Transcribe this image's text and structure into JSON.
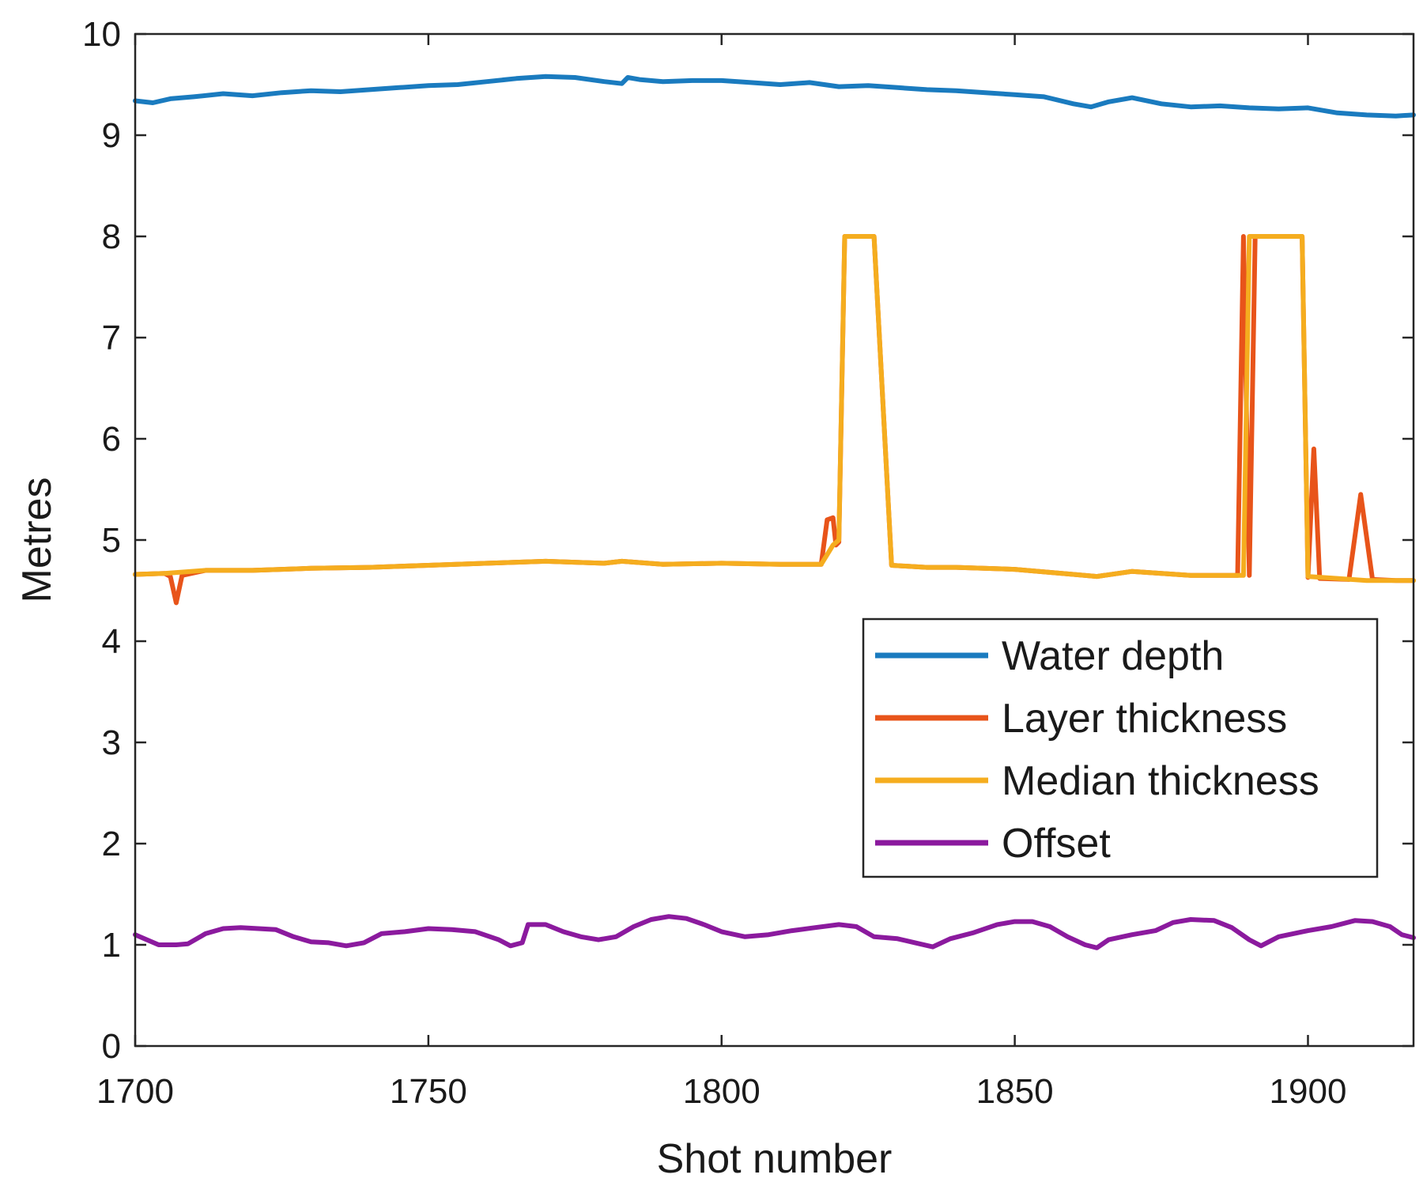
{
  "chart_data": {
    "type": "line",
    "title": "",
    "xlabel": "Shot number",
    "ylabel": "Metres",
    "xlim": [
      1700,
      1918
    ],
    "ylim": [
      0,
      10
    ],
    "xticks": [
      1700,
      1750,
      1800,
      1850,
      1900
    ],
    "yticks": [
      0,
      1,
      2,
      3,
      4,
      5,
      6,
      7,
      8,
      9,
      10
    ],
    "grid": false,
    "legend_position": "center-right",
    "series": [
      {
        "name": "Water depth",
        "color": "#1a7bbf",
        "points": [
          [
            1700,
            9.34
          ],
          [
            1703,
            9.32
          ],
          [
            1706,
            9.36
          ],
          [
            1710,
            9.38
          ],
          [
            1715,
            9.41
          ],
          [
            1720,
            9.39
          ],
          [
            1725,
            9.42
          ],
          [
            1730,
            9.44
          ],
          [
            1735,
            9.43
          ],
          [
            1740,
            9.45
          ],
          [
            1745,
            9.47
          ],
          [
            1750,
            9.49
          ],
          [
            1755,
            9.5
          ],
          [
            1760,
            9.53
          ],
          [
            1765,
            9.56
          ],
          [
            1770,
            9.58
          ],
          [
            1775,
            9.57
          ],
          [
            1780,
            9.53
          ],
          [
            1783,
            9.51
          ],
          [
            1784,
            9.57
          ],
          [
            1786,
            9.55
          ],
          [
            1790,
            9.53
          ],
          [
            1795,
            9.54
          ],
          [
            1800,
            9.54
          ],
          [
            1805,
            9.52
          ],
          [
            1810,
            9.5
          ],
          [
            1815,
            9.52
          ],
          [
            1820,
            9.48
          ],
          [
            1825,
            9.49
          ],
          [
            1830,
            9.47
          ],
          [
            1835,
            9.45
          ],
          [
            1840,
            9.44
          ],
          [
            1845,
            9.42
          ],
          [
            1850,
            9.4
          ],
          [
            1855,
            9.38
          ],
          [
            1860,
            9.31
          ],
          [
            1863,
            9.28
          ],
          [
            1866,
            9.33
          ],
          [
            1870,
            9.37
          ],
          [
            1875,
            9.31
          ],
          [
            1880,
            9.28
          ],
          [
            1885,
            9.29
          ],
          [
            1890,
            9.27
          ],
          [
            1895,
            9.26
          ],
          [
            1900,
            9.27
          ],
          [
            1905,
            9.22
          ],
          [
            1910,
            9.2
          ],
          [
            1915,
            9.19
          ],
          [
            1918,
            9.2
          ]
        ]
      },
      {
        "name": "Layer thickness",
        "color": "#e8541a",
        "points": [
          [
            1700,
            4.66
          ],
          [
            1705,
            4.67
          ],
          [
            1706,
            4.64
          ],
          [
            1707,
            4.38
          ],
          [
            1708,
            4.65
          ],
          [
            1712,
            4.7
          ],
          [
            1720,
            4.7
          ],
          [
            1730,
            4.72
          ],
          [
            1740,
            4.73
          ],
          [
            1750,
            4.75
          ],
          [
            1760,
            4.77
          ],
          [
            1770,
            4.79
          ],
          [
            1780,
            4.77
          ],
          [
            1783,
            4.79
          ],
          [
            1790,
            4.76
          ],
          [
            1800,
            4.77
          ],
          [
            1810,
            4.76
          ],
          [
            1817,
            4.76
          ],
          [
            1818,
            5.2
          ],
          [
            1819,
            5.22
          ],
          [
            1819.5,
            4.95
          ],
          [
            1820,
            4.98
          ],
          [
            1821,
            8.0
          ],
          [
            1826,
            8.0
          ],
          [
            1829,
            4.75
          ],
          [
            1835,
            4.73
          ],
          [
            1840,
            4.73
          ],
          [
            1850,
            4.71
          ],
          [
            1860,
            4.66
          ],
          [
            1864,
            4.64
          ],
          [
            1870,
            4.69
          ],
          [
            1875,
            4.67
          ],
          [
            1880,
            4.65
          ],
          [
            1888,
            4.65
          ],
          [
            1889,
            8.0
          ],
          [
            1890,
            4.65
          ],
          [
            1891,
            8.0
          ],
          [
            1899,
            8.0
          ],
          [
            1900,
            4.63
          ],
          [
            1901,
            5.9
          ],
          [
            1902,
            4.62
          ],
          [
            1907,
            4.61
          ],
          [
            1909,
            5.45
          ],
          [
            1911,
            4.61
          ],
          [
            1915,
            4.6
          ],
          [
            1918,
            4.6
          ]
        ]
      },
      {
        "name": "Median thickness",
        "color": "#f5ad1f",
        "points": [
          [
            1700,
            4.66
          ],
          [
            1705,
            4.67
          ],
          [
            1712,
            4.7
          ],
          [
            1720,
            4.7
          ],
          [
            1730,
            4.72
          ],
          [
            1740,
            4.73
          ],
          [
            1750,
            4.75
          ],
          [
            1760,
            4.77
          ],
          [
            1770,
            4.79
          ],
          [
            1780,
            4.77
          ],
          [
            1783,
            4.79
          ],
          [
            1790,
            4.76
          ],
          [
            1800,
            4.77
          ],
          [
            1810,
            4.76
          ],
          [
            1817,
            4.76
          ],
          [
            1819,
            4.95
          ],
          [
            1820,
            5.0
          ],
          [
            1821,
            8.0
          ],
          [
            1826,
            8.0
          ],
          [
            1829,
            4.75
          ],
          [
            1835,
            4.73
          ],
          [
            1840,
            4.73
          ],
          [
            1850,
            4.71
          ],
          [
            1860,
            4.66
          ],
          [
            1864,
            4.64
          ],
          [
            1870,
            4.69
          ],
          [
            1875,
            4.67
          ],
          [
            1880,
            4.65
          ],
          [
            1889,
            4.65
          ],
          [
            1890,
            8.0
          ],
          [
            1899,
            8.0
          ],
          [
            1900,
            4.64
          ],
          [
            1905,
            4.62
          ],
          [
            1910,
            4.6
          ],
          [
            1918,
            4.6
          ]
        ]
      },
      {
        "name": "Offset",
        "color": "#8b1a9e",
        "points": [
          [
            1700,
            1.1
          ],
          [
            1702,
            1.05
          ],
          [
            1704,
            1.0
          ],
          [
            1707,
            1.0
          ],
          [
            1709,
            1.01
          ],
          [
            1712,
            1.11
          ],
          [
            1715,
            1.16
          ],
          [
            1718,
            1.17
          ],
          [
            1721,
            1.16
          ],
          [
            1724,
            1.15
          ],
          [
            1727,
            1.08
          ],
          [
            1730,
            1.03
          ],
          [
            1733,
            1.02
          ],
          [
            1736,
            0.99
          ],
          [
            1739,
            1.02
          ],
          [
            1742,
            1.11
          ],
          [
            1746,
            1.13
          ],
          [
            1750,
            1.16
          ],
          [
            1754,
            1.15
          ],
          [
            1758,
            1.13
          ],
          [
            1762,
            1.05
          ],
          [
            1764,
            0.99
          ],
          [
            1766,
            1.02
          ],
          [
            1767,
            1.2
          ],
          [
            1770,
            1.2
          ],
          [
            1773,
            1.13
          ],
          [
            1776,
            1.08
          ],
          [
            1779,
            1.05
          ],
          [
            1782,
            1.08
          ],
          [
            1785,
            1.18
          ],
          [
            1788,
            1.25
          ],
          [
            1791,
            1.28
          ],
          [
            1794,
            1.26
          ],
          [
            1797,
            1.2
          ],
          [
            1800,
            1.13
          ],
          [
            1804,
            1.08
          ],
          [
            1808,
            1.1
          ],
          [
            1812,
            1.14
          ],
          [
            1816,
            1.17
          ],
          [
            1820,
            1.2
          ],
          [
            1823,
            1.18
          ],
          [
            1826,
            1.08
          ],
          [
            1830,
            1.06
          ],
          [
            1833,
            1.02
          ],
          [
            1836,
            0.98
          ],
          [
            1839,
            1.06
          ],
          [
            1843,
            1.12
          ],
          [
            1847,
            1.2
          ],
          [
            1850,
            1.23
          ],
          [
            1853,
            1.23
          ],
          [
            1856,
            1.18
          ],
          [
            1859,
            1.08
          ],
          [
            1862,
            1.0
          ],
          [
            1864,
            0.97
          ],
          [
            1866,
            1.05
          ],
          [
            1870,
            1.1
          ],
          [
            1874,
            1.14
          ],
          [
            1877,
            1.22
          ],
          [
            1880,
            1.25
          ],
          [
            1884,
            1.24
          ],
          [
            1887,
            1.17
          ],
          [
            1890,
            1.05
          ],
          [
            1892,
            0.99
          ],
          [
            1895,
            1.08
          ],
          [
            1900,
            1.14
          ],
          [
            1904,
            1.18
          ],
          [
            1908,
            1.24
          ],
          [
            1911,
            1.23
          ],
          [
            1914,
            1.18
          ],
          [
            1916,
            1.1
          ],
          [
            1918,
            1.07
          ]
        ]
      }
    ]
  }
}
